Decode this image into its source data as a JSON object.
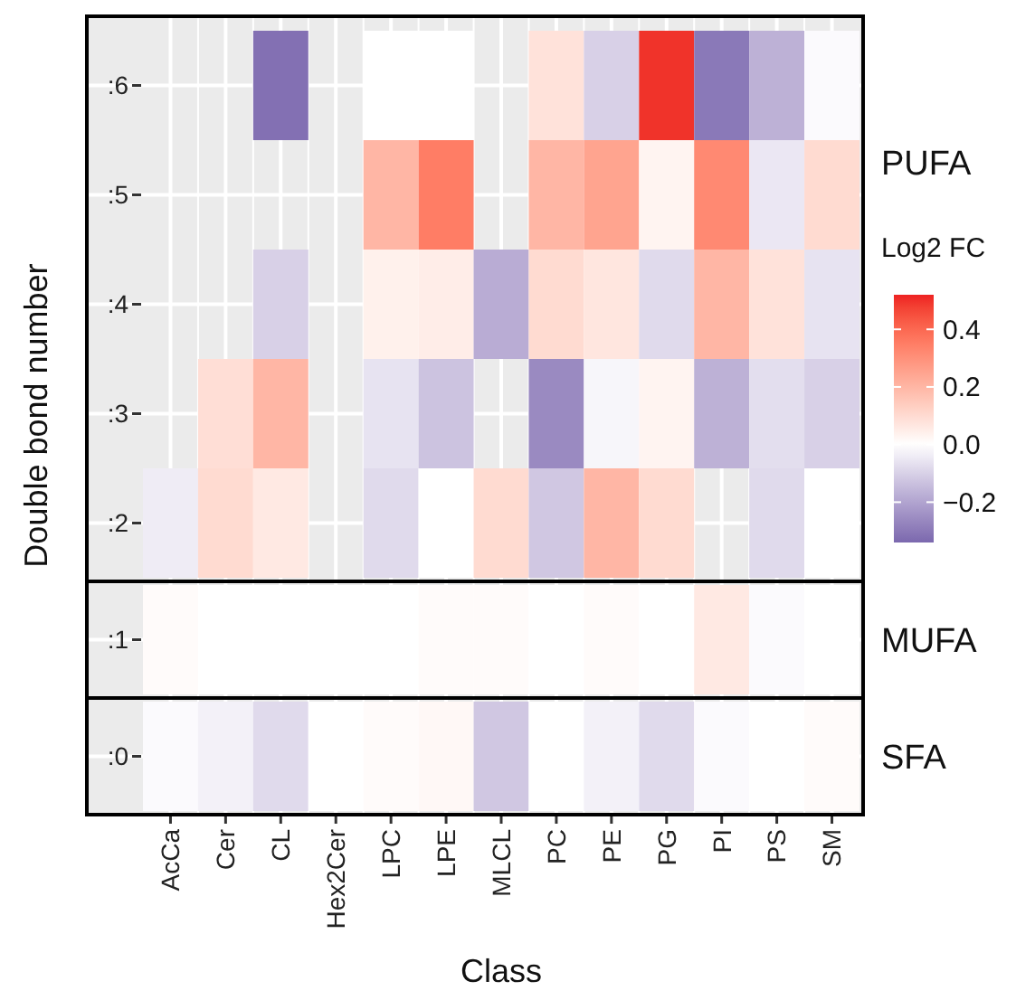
{
  "chart_data": {
    "type": "heatmap",
    "xlabel": "Class",
    "ylabel": "Double bond number",
    "clabel": "Log2 FC",
    "categories": [
      "AcCa",
      "Cer",
      "CL",
      "Hex2Cer",
      "LPC",
      "LPE",
      "MLCL",
      "PC",
      "PE",
      "PG",
      "PI",
      "PS",
      "SM"
    ],
    "y_categories": [
      ":6",
      ":5",
      ":4",
      ":3",
      ":2",
      ":1",
      ":0"
    ],
    "cells": [
      [
        null,
        null,
        -0.32,
        null,
        0.0,
        0.0,
        null,
        0.08,
        -0.1,
        0.5,
        -0.3,
        -0.17,
        -0.01
      ],
      [
        null,
        null,
        null,
        null,
        0.2,
        0.35,
        null,
        0.2,
        0.25,
        0.03,
        0.32,
        -0.05,
        0.1
      ],
      [
        null,
        null,
        -0.1,
        null,
        0.04,
        0.05,
        -0.18,
        0.1,
        0.07,
        -0.08,
        0.2,
        0.08,
        -0.06
      ],
      [
        null,
        0.09,
        0.2,
        null,
        -0.06,
        -0.13,
        null,
        -0.26,
        -0.02,
        0.03,
        -0.17,
        -0.07,
        -0.1
      ],
      [
        -0.04,
        0.1,
        0.06,
        null,
        -0.08,
        0.0,
        0.1,
        -0.12,
        0.2,
        0.1,
        null,
        -0.08,
        0.0
      ],
      [
        0.01,
        0.0,
        0.0,
        0.0,
        0.0,
        0.01,
        0.01,
        0.0,
        0.01,
        0.0,
        0.06,
        -0.01,
        0.0
      ],
      [
        -0.01,
        -0.03,
        -0.08,
        0.0,
        0.01,
        0.02,
        -0.12,
        0.0,
        -0.03,
        -0.08,
        -0.01,
        0.0,
        0.01
      ]
    ],
    "clim": [
      -0.34,
      0.52
    ],
    "cticks": [
      {
        "value": 0.4,
        "label": "0.4"
      },
      {
        "value": 0.2,
        "label": "0.2"
      },
      {
        "value": 0,
        "label": "0.0"
      },
      {
        "value": -0.2,
        "label": "−0.2"
      }
    ],
    "annotations": [
      "PUFA",
      "MUFA",
      "SFA"
    ],
    "grid": true
  }
}
